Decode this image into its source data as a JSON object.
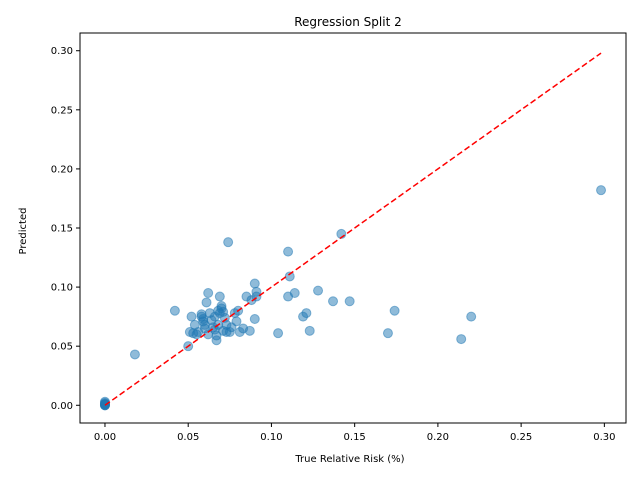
{
  "chart_data": {
    "type": "scatter",
    "title": "Regression Split 2",
    "xlabel": "True Relative Risk (%)",
    "ylabel": "Predicted",
    "xlim": [
      -0.015,
      0.313
    ],
    "ylim": [
      -0.015,
      0.315
    ],
    "x_ticks": [
      0.0,
      0.05,
      0.1,
      0.15,
      0.2,
      0.25,
      0.3
    ],
    "x_tick_labels": [
      "0.00",
      "0.05",
      "0.10",
      "0.15",
      "0.20",
      "0.25",
      "0.30"
    ],
    "y_ticks": [
      0.0,
      0.05,
      0.1,
      0.15,
      0.2,
      0.25,
      0.3
    ],
    "y_tick_labels": [
      "0.00",
      "0.05",
      "0.10",
      "0.15",
      "0.20",
      "0.25",
      "0.30"
    ],
    "grid": false,
    "legend": "none",
    "point_color": "#1f77b4",
    "point_alpha": 0.5,
    "reference_line": {
      "from": [
        0.0,
        0.0
      ],
      "to": [
        0.298,
        0.298
      ],
      "style": "dashed",
      "color": "#ff0000"
    },
    "points": [
      [
        0.0,
        0.0
      ],
      [
        0.0,
        0.0
      ],
      [
        0.0,
        0.001
      ],
      [
        0.0,
        0.002
      ],
      [
        0.0,
        0.001
      ],
      [
        0.0,
        0.003
      ],
      [
        0.0,
        0.0
      ],
      [
        0.0,
        0.001
      ],
      [
        0.018,
        0.043
      ],
      [
        0.042,
        0.08
      ],
      [
        0.05,
        0.05
      ],
      [
        0.051,
        0.062
      ],
      [
        0.052,
        0.075
      ],
      [
        0.053,
        0.061
      ],
      [
        0.054,
        0.068
      ],
      [
        0.055,
        0.06
      ],
      [
        0.056,
        0.062
      ],
      [
        0.058,
        0.077
      ],
      [
        0.058,
        0.075
      ],
      [
        0.059,
        0.073
      ],
      [
        0.059,
        0.071
      ],
      [
        0.06,
        0.068
      ],
      [
        0.06,
        0.065
      ],
      [
        0.061,
        0.087
      ],
      [
        0.062,
        0.095
      ],
      [
        0.062,
        0.06
      ],
      [
        0.063,
        0.078
      ],
      [
        0.064,
        0.072
      ],
      [
        0.065,
        0.066
      ],
      [
        0.066,
        0.064
      ],
      [
        0.066,
        0.075
      ],
      [
        0.067,
        0.055
      ],
      [
        0.067,
        0.059
      ],
      [
        0.068,
        0.08
      ],
      [
        0.068,
        0.068
      ],
      [
        0.069,
        0.092
      ],
      [
        0.069,
        0.078
      ],
      [
        0.07,
        0.082
      ],
      [
        0.07,
        0.084
      ],
      [
        0.071,
        0.063
      ],
      [
        0.071,
        0.079
      ],
      [
        0.072,
        0.074
      ],
      [
        0.073,
        0.062
      ],
      [
        0.073,
        0.068
      ],
      [
        0.074,
        0.138
      ],
      [
        0.075,
        0.062
      ],
      [
        0.076,
        0.066
      ],
      [
        0.078,
        0.078
      ],
      [
        0.079,
        0.071
      ],
      [
        0.08,
        0.08
      ],
      [
        0.081,
        0.062
      ],
      [
        0.083,
        0.065
      ],
      [
        0.085,
        0.092
      ],
      [
        0.087,
        0.063
      ],
      [
        0.088,
        0.089
      ],
      [
        0.09,
        0.073
      ],
      [
        0.09,
        0.103
      ],
      [
        0.091,
        0.092
      ],
      [
        0.091,
        0.096
      ],
      [
        0.104,
        0.061
      ],
      [
        0.11,
        0.092
      ],
      [
        0.11,
        0.13
      ],
      [
        0.111,
        0.109
      ],
      [
        0.114,
        0.095
      ],
      [
        0.119,
        0.075
      ],
      [
        0.121,
        0.078
      ],
      [
        0.123,
        0.063
      ],
      [
        0.128,
        0.097
      ],
      [
        0.137,
        0.088
      ],
      [
        0.142,
        0.145
      ],
      [
        0.147,
        0.088
      ],
      [
        0.17,
        0.061
      ],
      [
        0.174,
        0.08
      ],
      [
        0.214,
        0.056
      ],
      [
        0.22,
        0.075
      ],
      [
        0.298,
        0.182
      ]
    ]
  }
}
